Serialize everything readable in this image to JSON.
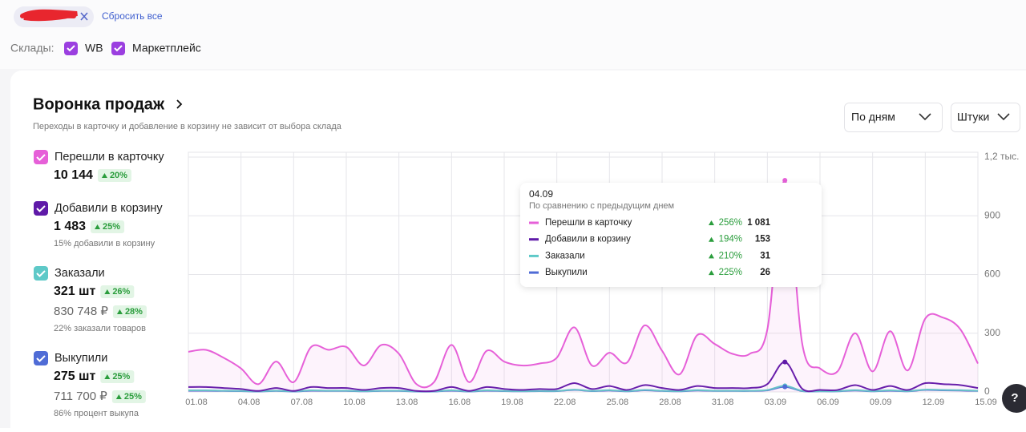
{
  "filters": {
    "reset": "Сбросить все",
    "warehouses_label": "Склады:",
    "warehouses": [
      "WB",
      "Маркетплейс"
    ]
  },
  "card": {
    "title": "Воронка продаж",
    "subtitle": "Переходы в карточку и добавление в корзину не зависит от выбора склада",
    "dropdowns": [
      "По дням",
      "Штуки"
    ]
  },
  "funnel": [
    {
      "label": "Перешли в карточку",
      "value": "10 144",
      "change": "20%"
    },
    {
      "label": "Добавили в корзину",
      "value": "1 483",
      "change": "25%",
      "note": "15% добавили в корзину"
    },
    {
      "label": "Заказали",
      "value": "321 шт",
      "change": "26%",
      "value2": "830 748 ₽",
      "change2": "28%",
      "note": "22% заказали товаров"
    },
    {
      "label": "Выкупили",
      "value": "275 шт",
      "change": "25%",
      "value2": "711 700 ₽",
      "change2": "25%",
      "note": "86% процент выкупа"
    }
  ],
  "help": "?",
  "chart_data": {
    "type": "line",
    "categories": [
      "01.08",
      null,
      null,
      "04.08",
      null,
      null,
      "07.08",
      null,
      null,
      "10.08",
      null,
      null,
      "13.08",
      null,
      null,
      "16.08",
      null,
      null,
      "19.08",
      null,
      null,
      "22.08",
      null,
      null,
      "25.08",
      null,
      null,
      "28.08",
      null,
      null,
      "31.08",
      null,
      null,
      "03.09",
      null,
      null,
      "06.09",
      null,
      null,
      "09.09",
      null,
      null,
      "12.09",
      null,
      null,
      "15.09"
    ],
    "series": [
      {
        "name": "Перешли в карточку",
        "color": "#e660d8",
        "values": [
          205,
          215,
          175,
          120,
          40,
          155,
          50,
          230,
          215,
          230,
          135,
          240,
          195,
          40,
          50,
          240,
          50,
          210,
          155,
          135,
          145,
          175,
          330,
          135,
          200,
          150,
          340,
          210,
          90,
          290,
          245,
          195,
          195,
          320,
          1081,
          240,
          120,
          105,
          300,
          105,
          310,
          110,
          375,
          380,
          320,
          145
        ]
      },
      {
        "name": "Добавили в корзину",
        "color": "#5f1aa8",
        "values": [
          25,
          25,
          20,
          15,
          5,
          20,
          5,
          25,
          20,
          20,
          10,
          20,
          20,
          5,
          5,
          25,
          5,
          25,
          15,
          10,
          15,
          15,
          45,
          15,
          30,
          10,
          35,
          20,
          10,
          30,
          20,
          20,
          20,
          40,
          153,
          15,
          10,
          10,
          35,
          10,
          30,
          10,
          45,
          40,
          35,
          20
        ]
      },
      {
        "name": "Заказали",
        "color": "#5ec9c8",
        "values": [
          8,
          8,
          6,
          5,
          3,
          6,
          3,
          8,
          6,
          6,
          4,
          6,
          6,
          3,
          3,
          8,
          3,
          8,
          5,
          4,
          5,
          5,
          12,
          5,
          9,
          4,
          10,
          6,
          4,
          9,
          6,
          6,
          6,
          10,
          31,
          5,
          4,
          4,
          9,
          4,
          8,
          4,
          12,
          10,
          9,
          6
        ]
      },
      {
        "name": "Выкупили",
        "color": "#4f6cd6",
        "values": [
          6,
          6,
          5,
          4,
          2,
          5,
          2,
          6,
          5,
          5,
          3,
          5,
          5,
          2,
          2,
          6,
          2,
          6,
          4,
          3,
          4,
          4,
          10,
          4,
          7,
          3,
          8,
          5,
          3,
          7,
          5,
          5,
          5,
          8,
          26,
          4,
          3,
          3,
          7,
          3,
          6,
          3,
          10,
          8,
          7,
          5
        ]
      }
    ],
    "ylim": [
      0,
      1200
    ],
    "yticks": [
      0,
      300,
      600,
      900,
      {
        "value": 1200,
        "label": "1,2 тыс."
      }
    ],
    "grid": true,
    "tooltip": {
      "date": "04.09",
      "note": "По сравнению с предыдущим днем",
      "changes": [
        "256%",
        "194%",
        "210%",
        "225%"
      ],
      "value_labels": [
        "1 081",
        "153",
        "31",
        "26"
      ]
    }
  }
}
